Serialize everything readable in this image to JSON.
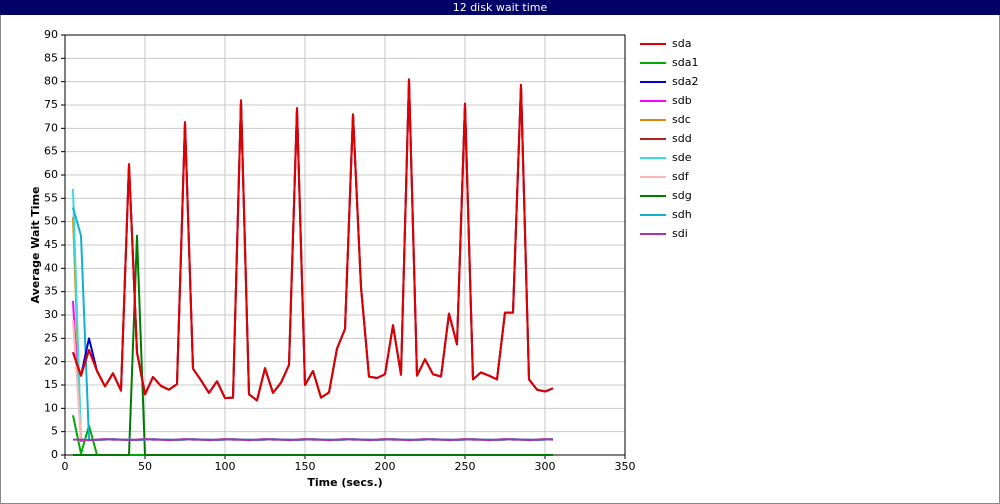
{
  "chart_data": {
    "type": "line",
    "title": "12 disk wait time",
    "xlabel": "Time (secs.)",
    "ylabel": "Average Wait Time",
    "xlim": [
      0,
      350
    ],
    "xticks": [
      0,
      50,
      100,
      150,
      200,
      250,
      300,
      350
    ],
    "ylim": [
      0,
      90
    ],
    "yticks": [
      0,
      5,
      10,
      15,
      20,
      25,
      30,
      35,
      40,
      45,
      50,
      55,
      60,
      65,
      70,
      75,
      80,
      85,
      90
    ],
    "grid": true,
    "legend": "right",
    "x": [
      5,
      10,
      15,
      20,
      25,
      30,
      35,
      40,
      45,
      50,
      55,
      60,
      65,
      70,
      75,
      80,
      85,
      90,
      95,
      100,
      105,
      110,
      115,
      120,
      125,
      130,
      135,
      140,
      145,
      150,
      155,
      160,
      165,
      170,
      175,
      180,
      185,
      190,
      195,
      200,
      205,
      210,
      215,
      220,
      225,
      230,
      235,
      240,
      245,
      250,
      255,
      260,
      265,
      270,
      275,
      280,
      285,
      290,
      295,
      300,
      305
    ],
    "series": [
      {
        "name": "sda1",
        "color": "#00aa00",
        "values": [
          8.5,
          0.3,
          6.3,
          0,
          0,
          0,
          0,
          0,
          0,
          0,
          0,
          0,
          0,
          0,
          0,
          0,
          0,
          0,
          0,
          0,
          0,
          0,
          0,
          0,
          0,
          0,
          0,
          0,
          0,
          0,
          0,
          0,
          0,
          0,
          0,
          0,
          0,
          0,
          0,
          0,
          0,
          0,
          0,
          0,
          0,
          0,
          0,
          0,
          0,
          0,
          0,
          0,
          0,
          0,
          0,
          0,
          0,
          0,
          0,
          0,
          0
        ]
      },
      {
        "name": "sdg",
        "color": "#007a00",
        "values": [
          0,
          0,
          0,
          0,
          0,
          0,
          0,
          0,
          47,
          0,
          0,
          0,
          0,
          0,
          0,
          0,
          0,
          0,
          0,
          0,
          0,
          0,
          0,
          0,
          0,
          0,
          0,
          0,
          0,
          0,
          0,
          0,
          0,
          0,
          0,
          0,
          0,
          0,
          0,
          0,
          0,
          0,
          0,
          0,
          0,
          0,
          0,
          0,
          0,
          0,
          0,
          0,
          0,
          0,
          0,
          0,
          0,
          0,
          0,
          0,
          0
        ]
      },
      {
        "name": "sdb",
        "color": "#ff00ff",
        "values": [
          33,
          3.0,
          3.3,
          3.2,
          3.3,
          3.4,
          3.3,
          3.3,
          3.2,
          3.3,
          3.4,
          3.3,
          3.3,
          3.2,
          3.3,
          3.4,
          3.3,
          3.3,
          3.2,
          3.3,
          3.4,
          3.3,
          3.3,
          3.2,
          3.3,
          3.4,
          3.3,
          3.3,
          3.2,
          3.3,
          3.4,
          3.3,
          3.3,
          3.2,
          3.3,
          3.4,
          3.3,
          3.3,
          3.2,
          3.3,
          3.4,
          3.3,
          3.3,
          3.2,
          3.3,
          3.4,
          3.3,
          3.3,
          3.2,
          3.3,
          3.4,
          3.3,
          3.3,
          3.2,
          3.3,
          3.4,
          3.3,
          3.3,
          3.2,
          3.3,
          3.4
        ]
      },
      {
        "name": "sdc",
        "color": "#dd8800",
        "values": [
          51,
          3.3,
          3.2,
          3.3,
          3.4,
          3.3,
          3.3,
          3.2,
          3.3,
          3.4,
          3.3,
          3.3,
          3.2,
          3.3,
          3.4,
          3.3,
          3.3,
          3.2,
          3.3,
          3.4,
          3.3,
          3.3,
          3.2,
          3.3,
          3.4,
          3.3,
          3.3,
          3.2,
          3.3,
          3.4,
          3.3,
          3.3,
          3.2,
          3.3,
          3.4,
          3.3,
          3.3,
          3.2,
          3.3,
          3.4,
          3.3,
          3.3,
          3.2,
          3.3,
          3.4,
          3.3,
          3.3,
          3.2,
          3.3,
          3.4,
          3.3,
          3.3,
          3.2,
          3.3,
          3.4,
          3.3,
          3.3,
          3.2,
          3.3,
          3.4,
          3.3
        ]
      },
      {
        "name": "sde",
        "color": "#33dddd",
        "values": [
          57,
          3.3,
          3.2,
          3.3,
          3.4,
          3.3,
          3.3,
          3.2,
          3.3,
          3.4,
          3.3,
          3.3,
          3.2,
          3.3,
          3.4,
          3.3,
          3.3,
          3.2,
          3.3,
          3.4,
          3.3,
          3.3,
          3.2,
          3.3,
          3.4,
          3.3,
          3.3,
          3.2,
          3.3,
          3.4,
          3.3,
          3.3,
          3.2,
          3.3,
          3.4,
          3.3,
          3.3,
          3.2,
          3.3,
          3.4,
          3.3,
          3.3,
          3.2,
          3.3,
          3.4,
          3.3,
          3.3,
          3.2,
          3.3,
          3.4,
          3.3,
          3.3,
          3.2,
          3.3,
          3.4,
          3.3,
          3.3,
          3.2,
          3.3,
          3.4,
          3.3
        ]
      },
      {
        "name": "sdf",
        "color": "#ffb6b6",
        "values": [
          29,
          3.3,
          3.2,
          3.3,
          3.4,
          3.3,
          3.3,
          3.2,
          3.3,
          3.4,
          3.3,
          3.3,
          3.2,
          3.3,
          3.4,
          3.3,
          3.3,
          3.2,
          3.3,
          3.4,
          3.3,
          3.3,
          3.2,
          3.3,
          3.4,
          3.3,
          3.3,
          3.2,
          3.3,
          3.4,
          3.3,
          3.3,
          3.2,
          3.3,
          3.4,
          3.3,
          3.3,
          3.2,
          3.3,
          3.4,
          3.3,
          3.3,
          3.2,
          3.3,
          3.4,
          3.3,
          3.3,
          3.2,
          3.3,
          3.4,
          3.3,
          3.3,
          3.2,
          3.3,
          3.4,
          3.3,
          3.3,
          3.2,
          3.3,
          3.4,
          3.3
        ]
      },
      {
        "name": "sdh",
        "color": "#11b0cc",
        "values": [
          53,
          47,
          3.3,
          3.2,
          3.3,
          3.4,
          3.3,
          3.3,
          3.2,
          3.3,
          3.4,
          3.3,
          3.3,
          3.2,
          3.3,
          3.4,
          3.3,
          3.3,
          3.2,
          3.3,
          3.4,
          3.3,
          3.3,
          3.2,
          3.3,
          3.4,
          3.3,
          3.3,
          3.2,
          3.3,
          3.4,
          3.3,
          3.3,
          3.2,
          3.3,
          3.4,
          3.3,
          3.3,
          3.2,
          3.3,
          3.4,
          3.3,
          3.3,
          3.2,
          3.3,
          3.4,
          3.3,
          3.3,
          3.2,
          3.3,
          3.4,
          3.3,
          3.3,
          3.2,
          3.3,
          3.4,
          3.3,
          3.3,
          3.2,
          3.3,
          3.4
        ]
      },
      {
        "name": "sdi",
        "color": "#aa33aa",
        "values": [
          3.3,
          3.3,
          3.2,
          3.3,
          3.4,
          3.3,
          3.3,
          3.2,
          3.3,
          3.4,
          3.3,
          3.3,
          3.2,
          3.3,
          3.4,
          3.3,
          3.3,
          3.2,
          3.3,
          3.4,
          3.3,
          3.3,
          3.2,
          3.3,
          3.4,
          3.3,
          3.3,
          3.2,
          3.3,
          3.4,
          3.3,
          3.3,
          3.2,
          3.3,
          3.4,
          3.3,
          3.3,
          3.2,
          3.3,
          3.4,
          3.3,
          3.3,
          3.2,
          3.3,
          3.4,
          3.3,
          3.3,
          3.2,
          3.3,
          3.4,
          3.3,
          3.3,
          3.2,
          3.3,
          3.4,
          3.3,
          3.3,
          3.2,
          3.3,
          3.4,
          3.3
        ]
      },
      {
        "name": "sda2",
        "color": "#0000dd",
        "values": [
          22,
          17,
          25,
          18,
          14.7,
          17.5,
          13.8,
          62.3,
          22,
          13,
          16.7,
          14.8,
          14,
          15.2,
          71.3,
          18.5,
          16,
          13.3,
          15.8,
          12.2,
          12.3,
          76,
          13,
          11.7,
          18.6,
          13.3,
          15.5,
          19.3,
          74.3,
          15,
          18,
          12.3,
          13.4,
          22.8,
          27,
          73,
          36,
          16.8,
          16.5,
          17.3,
          27.8,
          17.2,
          80.5,
          17,
          20.5,
          17.3,
          16.8,
          30.3,
          23.7,
          75.3,
          16.2,
          17.7,
          17,
          16.2,
          30.5,
          30.5,
          79.3,
          16.2,
          14,
          13.6,
          14.3
        ]
      },
      {
        "name": "sdd",
        "color": "#aa2222",
        "values": [
          22,
          17,
          22.5,
          18,
          14.7,
          17.5,
          13.8,
          62.3,
          22,
          13,
          16.7,
          14.8,
          14,
          15.2,
          71.3,
          18.5,
          16,
          13.3,
          15.8,
          12.2,
          12.3,
          76,
          13,
          11.7,
          18.6,
          13.3,
          15.5,
          19.3,
          74.3,
          15,
          18,
          12.3,
          13.4,
          22.8,
          27,
          73,
          36,
          16.8,
          16.5,
          17.3,
          27.8,
          17.2,
          80.5,
          17,
          20.5,
          17.3,
          16.8,
          30.3,
          23.7,
          75.3,
          16.2,
          17.7,
          17,
          16.2,
          30.5,
          30.5,
          79.3,
          16.2,
          14,
          13.6,
          14.3
        ]
      },
      {
        "name": "sda",
        "color": "#dd0000",
        "values": [
          22,
          17,
          22.5,
          18,
          14.7,
          17.5,
          13.8,
          62.3,
          22,
          13,
          16.7,
          14.8,
          14,
          15.2,
          71.3,
          18.5,
          16,
          13.3,
          15.8,
          12.2,
          12.3,
          76,
          13,
          11.7,
          18.6,
          13.3,
          15.5,
          19.3,
          74.3,
          15,
          18,
          12.3,
          13.4,
          22.8,
          27,
          73,
          36,
          16.8,
          16.5,
          17.3,
          27.8,
          17.2,
          80.5,
          17,
          20.5,
          17.3,
          16.8,
          30.3,
          23.7,
          75.3,
          16.2,
          17.7,
          17,
          16.2,
          30.5,
          30.5,
          79.3,
          16.2,
          14,
          13.6,
          14.3
        ]
      }
    ]
  }
}
